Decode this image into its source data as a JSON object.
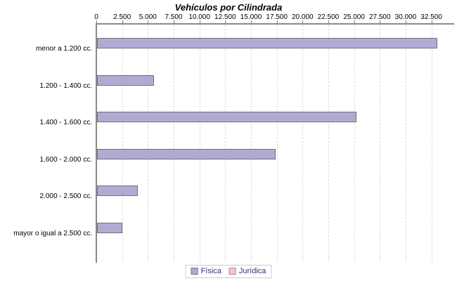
{
  "chart_data": {
    "type": "bar",
    "orientation": "horizontal",
    "title": "Vehículos por Cilindrada",
    "categories": [
      "menor a 1.200 cc.",
      "1.200 - 1.400 cc.",
      "1.400 - 1.600 cc.",
      "1.600 - 2.000 cc.",
      "2.000 - 2.500 cc.",
      "mayor o igual a 2.500 cc."
    ],
    "series": [
      {
        "name": "Física",
        "color": "#b3aad3",
        "outline": "#77718f",
        "values": [
          32900,
          5400,
          25050,
          17200,
          3850,
          2300
        ]
      },
      {
        "name": "Jurídica",
        "color": "#f8c5c4",
        "outline": "#a08e8e",
        "values": [
          0,
          0,
          0,
          0,
          0,
          0
        ]
      }
    ],
    "xlim": [
      0,
      34650
    ],
    "x_ticks": [
      0,
      2500,
      5000,
      7500,
      10000,
      12500,
      15000,
      17500,
      20000,
      22500,
      25000,
      27500,
      30000,
      32500
    ],
    "x_tick_labels": [
      "0",
      "2.500",
      "5.000",
      "7.500",
      "10.000",
      "12.500",
      "15.000",
      "17.500",
      "20.000",
      "22.500",
      "25.000",
      "27.500",
      "30.000",
      "32.500"
    ],
    "grid": "vertical-dashed",
    "legend_position": "bottom",
    "bar_outline": "#717171",
    "legend_text_color": "#3a2d78",
    "legend_border_color": "#cccccc"
  }
}
